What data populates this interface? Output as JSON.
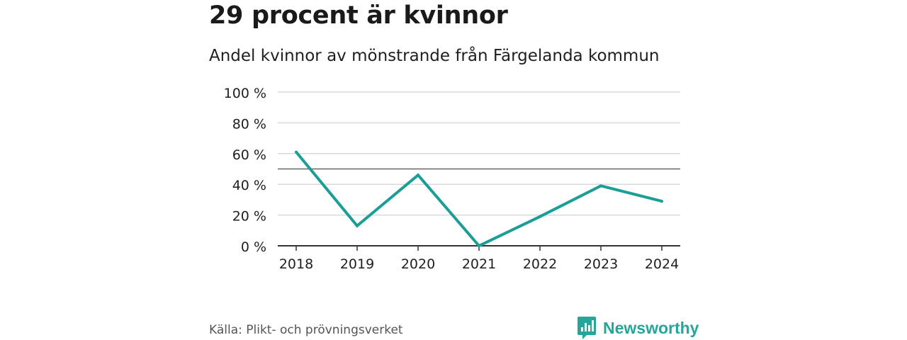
{
  "header": {
    "title": "29 procent är kvinnor",
    "subtitle": "Andel kvinnor av mönstrande från Färgelanda kommun"
  },
  "footer": {
    "source": "Källa: Plikt- och prövningsverket",
    "brand": "Newsworthy"
  },
  "colors": {
    "line": "#1a9e96",
    "grid": "#d9d9d9",
    "reference": "#666666",
    "brand": "#26a69a"
  },
  "chart_data": {
    "type": "line",
    "title": "29 procent är kvinnor",
    "subtitle": "Andel kvinnor av mönstrande från Färgelanda kommun",
    "xlabel": "",
    "ylabel": "",
    "x": [
      "2018",
      "2019",
      "2020",
      "2021",
      "2022",
      "2023",
      "2024"
    ],
    "series": [
      {
        "name": "Andel kvinnor",
        "values": [
          61,
          13,
          46,
          0,
          19,
          39,
          29
        ]
      }
    ],
    "ylim": [
      0,
      100
    ],
    "yticks": [
      0,
      20,
      40,
      60,
      80,
      100
    ],
    "ytick_labels": [
      "0 %",
      "20 %",
      "40 %",
      "60 %",
      "80 %",
      "100 %"
    ],
    "reference_line": 50,
    "grid": true
  }
}
